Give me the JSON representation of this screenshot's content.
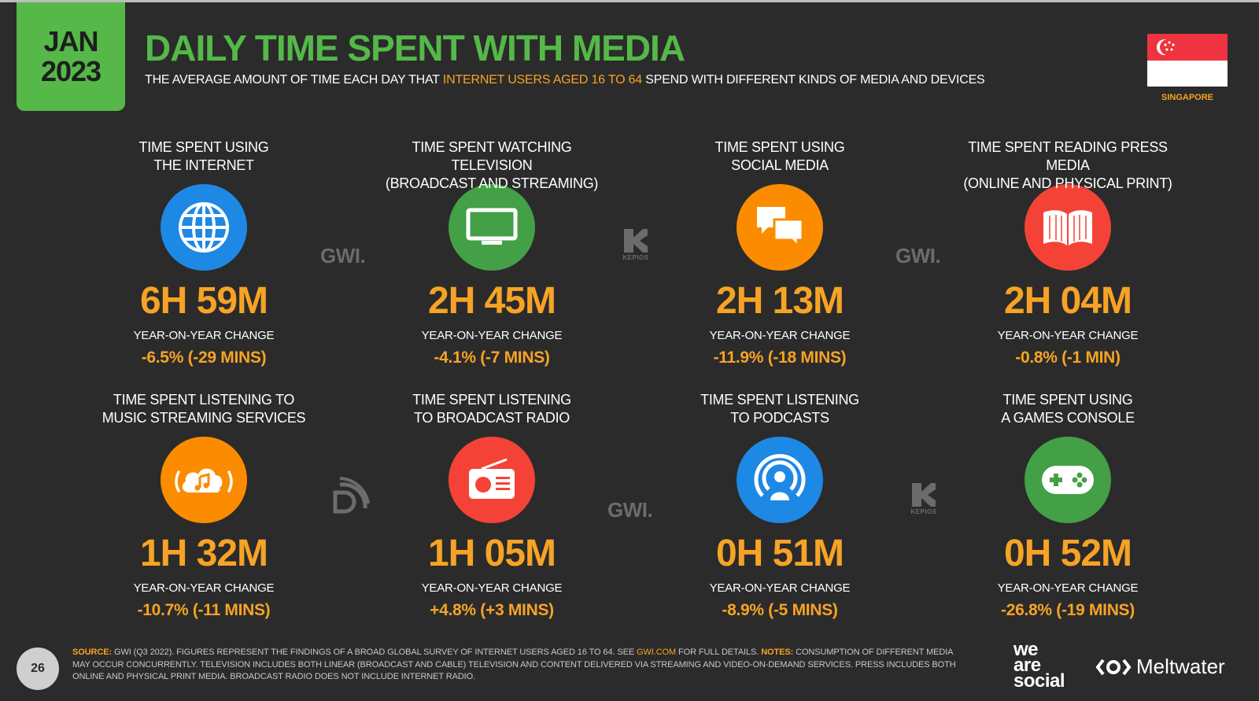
{
  "header": {
    "month": "JAN",
    "year": "2023",
    "title": "DAILY TIME SPENT WITH MEDIA",
    "subtitle_pre": "THE AVERAGE AMOUNT OF TIME EACH DAY THAT ",
    "subtitle_highlight": "INTERNET USERS AGED 16 TO 64",
    "subtitle_post": " SPEND WITH DIFFERENT KINDS OF MEDIA AND DEVICES",
    "country": "SINGAPORE"
  },
  "cards": [
    {
      "label_1": "TIME SPENT USING",
      "label_2": "THE INTERNET",
      "icon": "globe-icon",
      "color": "#1e88e5",
      "value": "6H 59M",
      "yoy_label": "YEAR-ON-YEAR CHANGE",
      "yoy_value": "-6.5% (-29 MINS)"
    },
    {
      "label_1": "TIME SPENT WATCHING TELEVISION",
      "label_2": "(BROADCAST AND STREAMING)",
      "icon": "television-icon",
      "color": "#43a047",
      "value": "2H 45M",
      "yoy_label": "YEAR-ON-YEAR CHANGE",
      "yoy_value": "-4.1% (-7 MINS)"
    },
    {
      "label_1": "TIME SPENT USING",
      "label_2": "SOCIAL MEDIA",
      "icon": "chat-bubbles-icon",
      "color": "#fb8c00",
      "value": "2H 13M",
      "yoy_label": "YEAR-ON-YEAR CHANGE",
      "yoy_value": "-11.9% (-18 MINS)"
    },
    {
      "label_1": "TIME SPENT READING PRESS MEDIA",
      "label_2": "(ONLINE AND PHYSICAL PRINT)",
      "icon": "open-book-icon",
      "color": "#f44336",
      "value": "2H 04M",
      "yoy_label": "YEAR-ON-YEAR CHANGE",
      "yoy_value": "-0.8% (-1 MIN)"
    },
    {
      "label_1": "TIME SPENT LISTENING TO",
      "label_2": "MUSIC STREAMING SERVICES",
      "icon": "music-cloud-icon",
      "color": "#fb8c00",
      "value": "1H 32M",
      "yoy_label": "YEAR-ON-YEAR CHANGE",
      "yoy_value": "-10.7% (-11 MINS)"
    },
    {
      "label_1": "TIME SPENT LISTENING",
      "label_2": "TO BROADCAST RADIO",
      "icon": "radio-icon",
      "color": "#f44336",
      "value": "1H 05M",
      "yoy_label": "YEAR-ON-YEAR CHANGE",
      "yoy_value": "+4.8% (+3 MINS)"
    },
    {
      "label_1": "TIME SPENT LISTENING",
      "label_2": "TO PODCASTS",
      "icon": "podcast-icon",
      "color": "#1e88e5",
      "value": "0H 51M",
      "yoy_label": "YEAR-ON-YEAR CHANGE",
      "yoy_value": "-8.9% (-5 MINS)"
    },
    {
      "label_1": "TIME SPENT USING",
      "label_2": "A GAMES CONSOLE",
      "icon": "gamepad-icon",
      "color": "#43a047",
      "value": "0H 52M",
      "yoy_label": "YEAR-ON-YEAR CHANGE",
      "yoy_value": "-26.8% (-19 MINS)"
    }
  ],
  "sources": {
    "gwi": "GWI.",
    "kepios": "KEPIOS"
  },
  "footer": {
    "page": "26",
    "source_label": "SOURCE:",
    "source_text_1": " GWI (Q3 2022). FIGURES REPRESENT THE FINDINGS OF A BROAD GLOBAL SURVEY OF INTERNET USERS AGED 16 TO 64. SEE ",
    "source_link": "GWI.COM",
    "source_text_2": " FOR FULL DETAILS. ",
    "notes_label": "NOTES:",
    "notes_text": " CONSUMPTION OF DIFFERENT MEDIA MAY OCCUR CONCURRENTLY. TELEVISION INCLUDES BOTH LINEAR (BROADCAST AND CABLE) TELEVISION AND CONTENT DELIVERED VIA STREAMING AND VIDEO-ON-DEMAND SERVICES. PRESS INCLUDES BOTH ONLINE AND PHYSICAL PRINT MEDIA. BROADCAST RADIO DOES NOT INCLUDE INTERNET RADIO.",
    "brand_1_line_1": "we",
    "brand_1_line_2": "are",
    "brand_1_line_3": "social",
    "brand_2": "Meltwater"
  }
}
